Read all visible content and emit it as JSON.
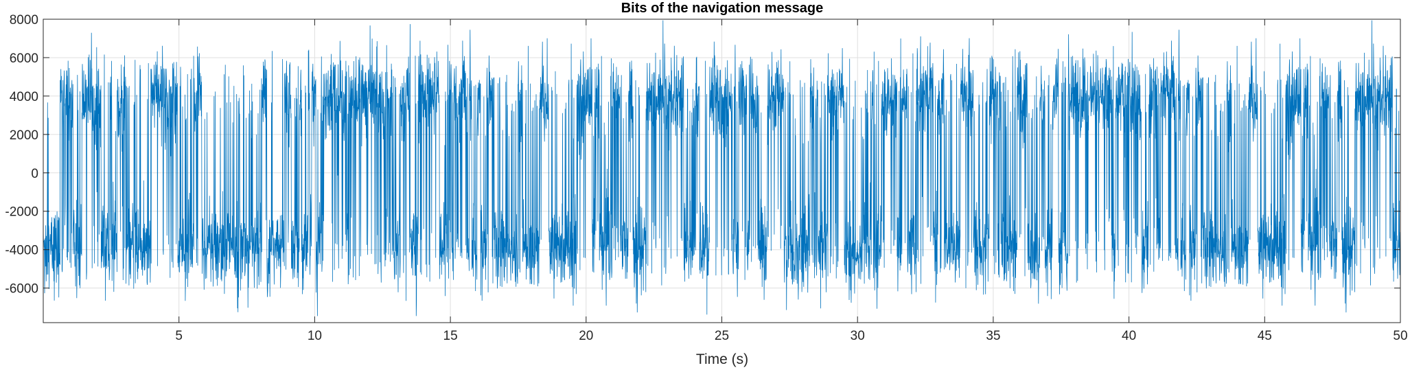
{
  "chart_data": {
    "type": "line",
    "title": "Bits of the navigation message",
    "xlabel": "Time (s)",
    "ylabel": "",
    "xlim": [
      0,
      50
    ],
    "ylim": [
      -7800,
      8000
    ],
    "xticks": [
      5,
      10,
      15,
      20,
      25,
      30,
      35,
      40,
      45,
      50
    ],
    "xtick_labels": [
      "5",
      "10",
      "15",
      "20",
      "25",
      "30",
      "35",
      "40",
      "45",
      "50"
    ],
    "yticks": [
      -6000,
      -4000,
      -2000,
      0,
      2000,
      4000,
      6000,
      8000
    ],
    "ytick_labels": [
      "-6000",
      "-4000",
      "-2000",
      "0",
      "2000",
      "4000",
      "6000",
      "8000"
    ],
    "grid": true,
    "line_color": "#0072BD",
    "series": [
      {
        "values_description_level_high": 4000,
        "values_description_level_low": -4000,
        "level_noise_std": 1100,
        "bit_period_s": 0.02,
        "sample_period_s": 0.001
      }
    ]
  }
}
